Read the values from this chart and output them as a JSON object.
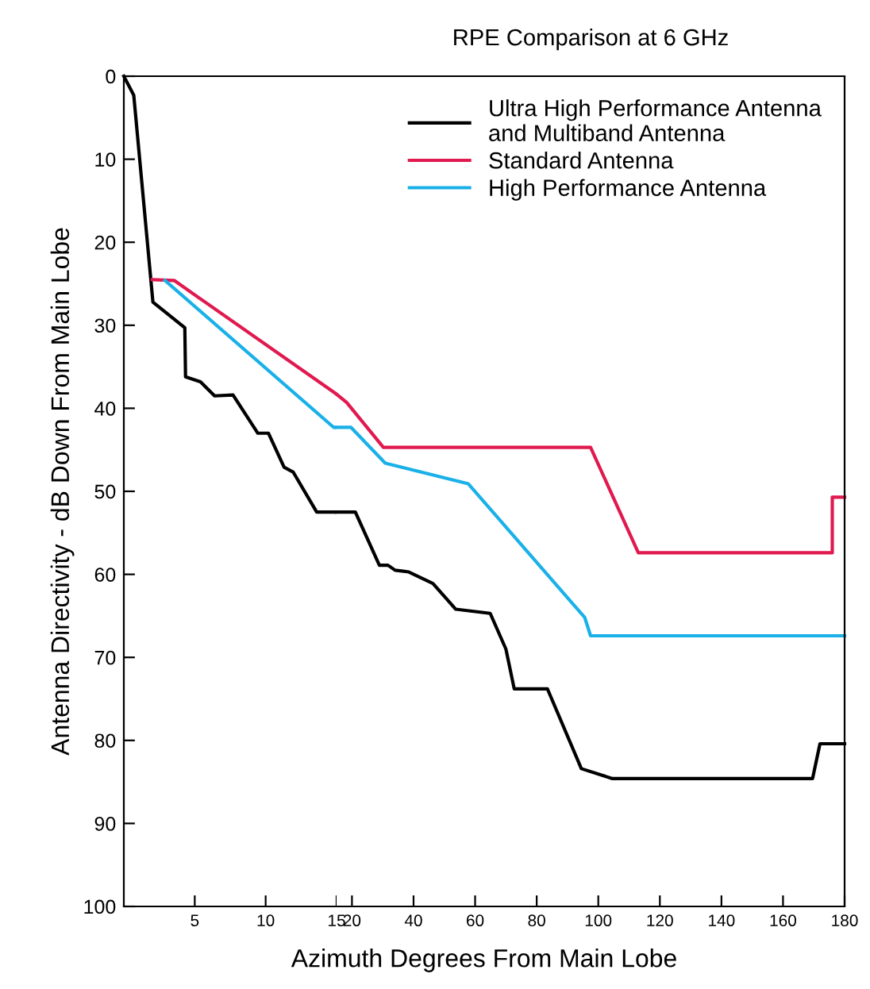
{
  "chart_data": [
    {
      "type": "line",
      "xlabel": "Azimuth Degrees From Main Lobe",
      "ylabel": "Antenna Directivity - dB Down From Main Lobe",
      "xlim": [
        0,
        15
      ],
      "xticks": [
        5,
        10,
        15
      ],
      "ylim": [
        100,
        0
      ],
      "yticks": [
        0,
        10,
        20,
        30,
        40,
        50,
        60,
        70,
        80,
        90,
        100
      ],
      "grid": false,
      "line_style": "solid",
      "marker": "none",
      "series": [
        {
          "color": "#000000",
          "x": [
            0,
            0.7,
            2.05,
            4.3,
            4.35,
            5.4,
            6.4,
            7.7,
            9.45,
            10.2,
            11.3,
            11.95,
            13.6,
            15
          ],
          "values": [
            0,
            2.3,
            27.2,
            30.3,
            36.2,
            36.8,
            38.5,
            38.4,
            43,
            43,
            47.1,
            47.7,
            52.5,
            52.5
          ]
        },
        {
          "color": "#e0194f",
          "x": [
            2,
            3.55,
            15
          ],
          "values": [
            24.5,
            24.6,
            38.3
          ]
        },
        {
          "color": "#1ab0e8",
          "x": [
            2.9,
            14.8,
            15
          ],
          "values": [
            24.6,
            42.3,
            42.3
          ]
        }
      ]
    },
    {
      "type": "line",
      "title": "RPE Comparison at 6 GHz",
      "xlim": [
        15,
        180
      ],
      "xticks": [
        20,
        40,
        60,
        80,
        100,
        120,
        140,
        160,
        180
      ],
      "ylim": [
        100,
        0
      ],
      "yticks": [
        0,
        10,
        20,
        30,
        40,
        50,
        60,
        70,
        80,
        90,
        100
      ],
      "tick_labels": "x",
      "grid": false,
      "legend": "top right",
      "line_style": "solid",
      "marker": "none",
      "series": [
        {
          "name": "Ultra High Performance Antenna\nand Multiband Antenna",
          "color": "#000000",
          "x": [
            15,
            21.1,
            28.9,
            31.7,
            34,
            38.3,
            46.3,
            53.7,
            64.9,
            70,
            72.7,
            83.5,
            94.5,
            104.6,
            169.6,
            172,
            180
          ],
          "values": [
            52.5,
            52.5,
            58.9,
            58.9,
            59.5,
            59.7,
            61.1,
            64.2,
            64.7,
            69,
            73.8,
            73.8,
            83.4,
            84.6,
            84.6,
            80.4,
            80.4
          ]
        },
        {
          "name": "Standard Antenna",
          "color": "#e0194f",
          "x": [
            15,
            18.3,
            30.2,
            97.5,
            113,
            176,
            176,
            180
          ],
          "values": [
            38.3,
            39.3,
            44.7,
            44.7,
            57.4,
            57.4,
            50.7,
            50.7
          ]
        },
        {
          "name": "High Performance Antenna",
          "color": "#1ab0e8",
          "x": [
            15,
            19.7,
            30.8,
            57.8,
            95.6,
            97.5,
            180
          ],
          "values": [
            42.3,
            42.3,
            46.6,
            49.1,
            65.2,
            67.4,
            67.4
          ]
        }
      ]
    }
  ]
}
